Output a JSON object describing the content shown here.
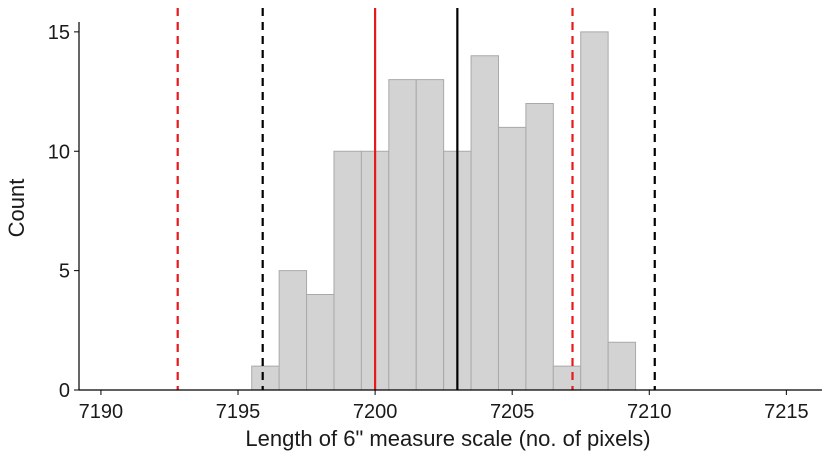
{
  "chart_data": {
    "type": "bar",
    "subtype": "histogram",
    "title": "",
    "xlabel": "Length of 6\" measure scale (no. of pixels)",
    "ylabel": "Count",
    "xlim": [
      7189.2,
      7216.3
    ],
    "ylim": [
      0,
      16
    ],
    "x_ticks": [
      7190,
      7195,
      7200,
      7205,
      7210,
      7215
    ],
    "y_ticks": [
      0,
      5,
      10,
      15
    ],
    "grid": false,
    "legend": "none",
    "bins": [
      {
        "x0": 7195.5,
        "x1": 7196.5,
        "count": 1
      },
      {
        "x0": 7196.5,
        "x1": 7197.5,
        "count": 5
      },
      {
        "x0": 7197.5,
        "x1": 7198.5,
        "count": 4
      },
      {
        "x0": 7198.5,
        "x1": 7199.5,
        "count": 10
      },
      {
        "x0": 7199.5,
        "x1": 7200.5,
        "count": 10
      },
      {
        "x0": 7200.5,
        "x1": 7201.5,
        "count": 13
      },
      {
        "x0": 7201.5,
        "x1": 7202.5,
        "count": 13
      },
      {
        "x0": 7202.5,
        "x1": 7203.5,
        "count": 10
      },
      {
        "x0": 7203.5,
        "x1": 7204.5,
        "count": 14
      },
      {
        "x0": 7204.5,
        "x1": 7205.5,
        "count": 11
      },
      {
        "x0": 7205.5,
        "x1": 7206.5,
        "count": 12
      },
      {
        "x0": 7206.5,
        "x1": 7207.5,
        "count": 1
      },
      {
        "x0": 7207.5,
        "x1": 7208.5,
        "count": 15
      },
      {
        "x0": 7208.5,
        "x1": 7209.5,
        "count": 2
      }
    ],
    "reference_lines": [
      {
        "x": 7192.8,
        "color": "#e8191b",
        "style": "dashed"
      },
      {
        "x": 7195.9,
        "color": "#000000",
        "style": "dashed"
      },
      {
        "x": 7200.0,
        "color": "#e8191b",
        "style": "solid"
      },
      {
        "x": 7203.0,
        "color": "#000000",
        "style": "solid"
      },
      {
        "x": 7207.2,
        "color": "#e8191b",
        "style": "dashed"
      },
      {
        "x": 7210.2,
        "color": "#000000",
        "style": "dashed"
      }
    ],
    "colors": {
      "bar_fill": "#d3d3d3",
      "bar_stroke": "#a9a9a9",
      "axis": "#000000",
      "red_line": "#e8191b",
      "black_line": "#000000"
    }
  }
}
